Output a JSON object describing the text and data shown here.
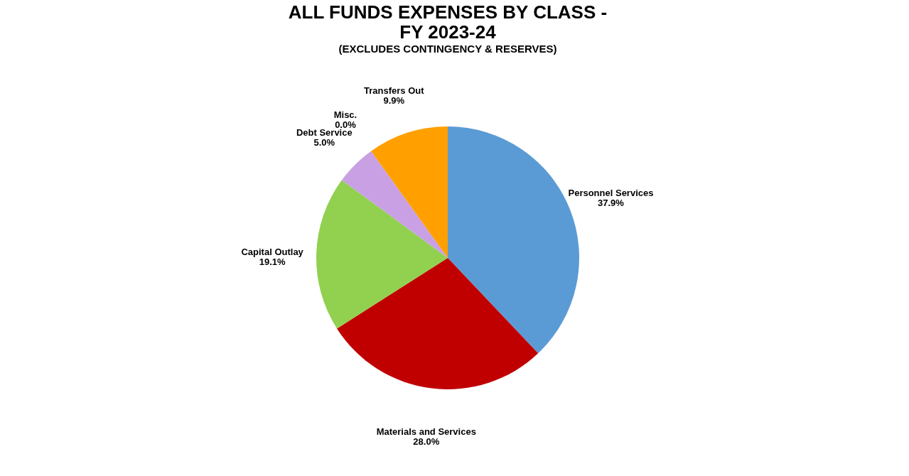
{
  "chart_data": {
    "type": "pie",
    "title": "ALL FUNDS EXPENSES BY CLASS -\nFY 2023-24",
    "subtitle": "(EXCLUDES CONTINGENCY & RESERVES)",
    "categories": [
      "Personnel Services",
      "Materials and Services",
      "Capital Outlay",
      "Debt Service",
      "Misc.",
      "Transfers Out"
    ],
    "values": [
      37.9,
      28.0,
      19.1,
      5.0,
      0.0,
      9.9
    ],
    "colors": [
      "#5b9bd5",
      "#c00000",
      "#92d050",
      "#c9a0e4",
      "#7030a0",
      "#ffa000"
    ],
    "value_labels": [
      "37.9%",
      "28.0%",
      "19.1%",
      "5.0%",
      "0.0%",
      "9.9%"
    ],
    "legend": false
  }
}
